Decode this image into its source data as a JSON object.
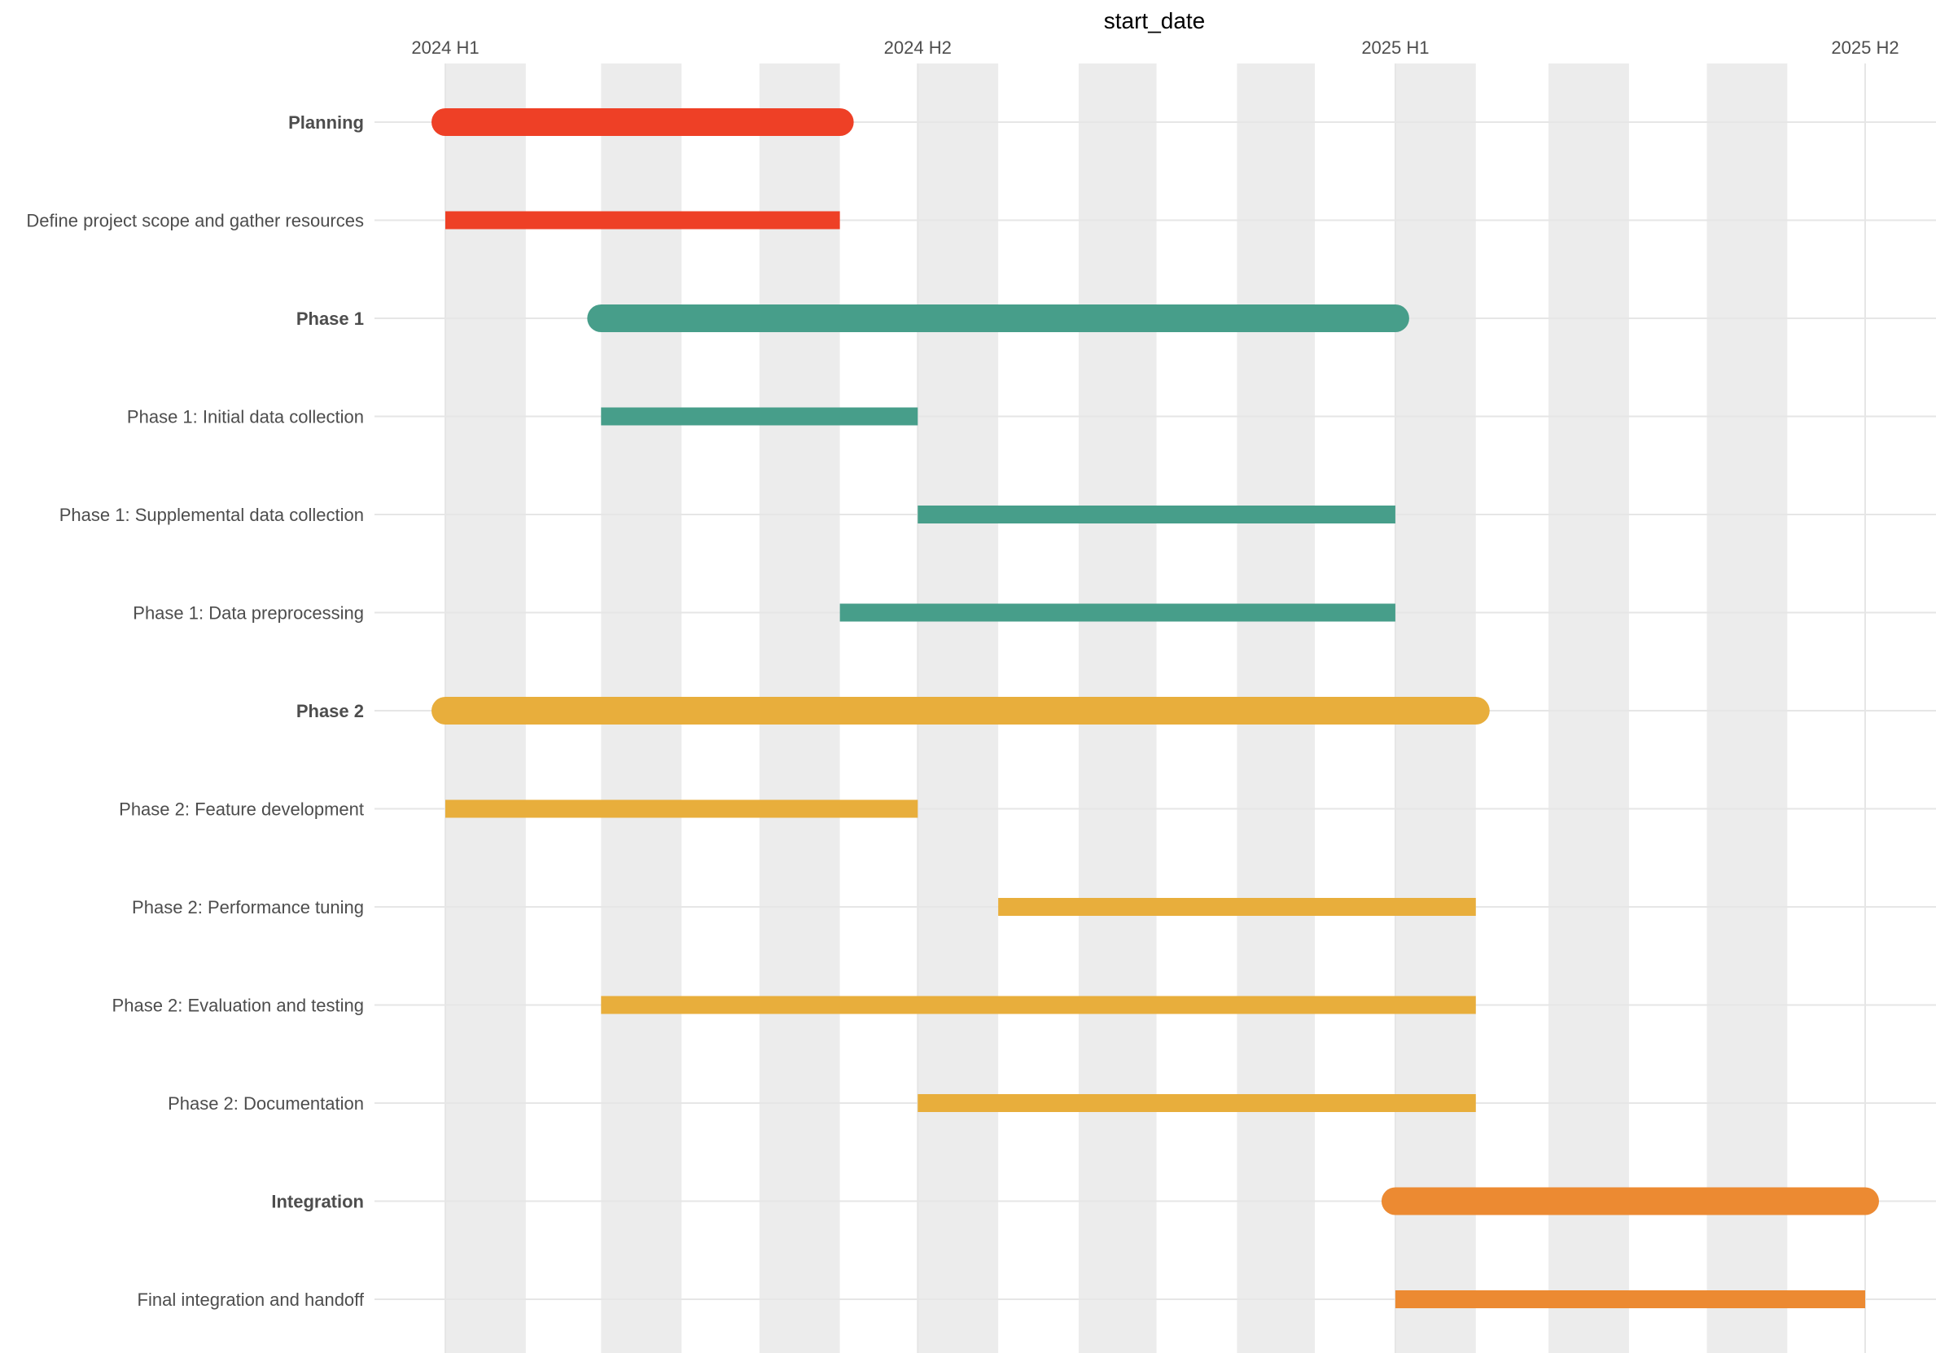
{
  "chart_data": {
    "type": "gantt",
    "title": "",
    "xlabel": "start_date",
    "ylabel": "",
    "x_ticks": [
      {
        "label": "2024 H1",
        "date": "2024-01-01"
      },
      {
        "label": "2024 H2",
        "date": "2024-07-01"
      },
      {
        "label": "2025 H1",
        "date": "2025-01-01"
      },
      {
        "label": "2025 H2",
        "date": "2025-07-01"
      }
    ],
    "xlim": [
      "2023-12-05",
      "2025-08-01"
    ],
    "shaded_months": [
      [
        "2024-01-01",
        "2024-02-01"
      ],
      [
        "2024-03-01",
        "2024-04-01"
      ],
      [
        "2024-05-01",
        "2024-06-01"
      ],
      [
        "2024-07-01",
        "2024-08-01"
      ],
      [
        "2024-09-01",
        "2024-10-01"
      ],
      [
        "2024-11-01",
        "2024-12-01"
      ],
      [
        "2025-01-01",
        "2025-02-01"
      ],
      [
        "2025-03-01",
        "2025-04-01"
      ],
      [
        "2025-05-01",
        "2025-06-01"
      ]
    ],
    "groups": [
      {
        "name": "Planning",
        "color": "#EE4026"
      },
      {
        "name": "Phase 1",
        "color": "#479E8A"
      },
      {
        "name": "Phase 2",
        "color": "#E8AE3C"
      },
      {
        "name": "Integration",
        "color": "#EC8A32"
      }
    ],
    "rows": [
      {
        "label": "Planning",
        "summary": true,
        "group": "Planning",
        "start": "2024-01-01",
        "end": "2024-06-01"
      },
      {
        "label": "Define project scope and gather resources",
        "summary": false,
        "group": "Planning",
        "start": "2024-01-01",
        "end": "2024-06-01"
      },
      {
        "label": "Phase 1",
        "summary": true,
        "group": "Phase 1",
        "start": "2024-03-01",
        "end": "2025-01-01"
      },
      {
        "label": "Phase 1: Initial data collection",
        "summary": false,
        "group": "Phase 1",
        "start": "2024-03-01",
        "end": "2024-07-01"
      },
      {
        "label": "Phase 1: Supplemental data collection",
        "summary": false,
        "group": "Phase 1",
        "start": "2024-07-01",
        "end": "2025-01-01"
      },
      {
        "label": "Phase 1: Data preprocessing",
        "summary": false,
        "group": "Phase 1",
        "start": "2024-06-01",
        "end": "2025-01-01"
      },
      {
        "label": "Phase 2",
        "summary": true,
        "group": "Phase 2",
        "start": "2024-01-01",
        "end": "2025-02-01"
      },
      {
        "label": "Phase 2: Feature development",
        "summary": false,
        "group": "Phase 2",
        "start": "2024-01-01",
        "end": "2024-07-01"
      },
      {
        "label": "Phase 2: Performance tuning",
        "summary": false,
        "group": "Phase 2",
        "start": "2024-08-01",
        "end": "2025-02-01"
      },
      {
        "label": "Phase 2: Evaluation and testing",
        "summary": false,
        "group": "Phase 2",
        "start": "2024-03-01",
        "end": "2025-02-01"
      },
      {
        "label": "Phase 2: Documentation",
        "summary": false,
        "group": "Phase 2",
        "start": "2024-07-01",
        "end": "2025-02-01"
      },
      {
        "label": "Integration",
        "summary": true,
        "group": "Integration",
        "start": "2025-01-01",
        "end": "2025-07-01"
      },
      {
        "label": "Final integration and handoff",
        "summary": false,
        "group": "Integration",
        "start": "2025-01-01",
        "end": "2025-07-01"
      }
    ],
    "grid": true,
    "legend": "none"
  }
}
